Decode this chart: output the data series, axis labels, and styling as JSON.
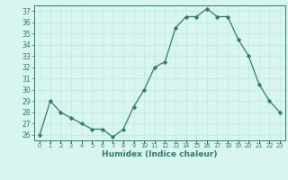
{
  "x": [
    0,
    1,
    2,
    3,
    4,
    5,
    6,
    7,
    8,
    9,
    10,
    11,
    12,
    13,
    14,
    15,
    16,
    17,
    18,
    19,
    20,
    21,
    22,
    23
  ],
  "y": [
    26.0,
    29.0,
    28.0,
    27.5,
    27.0,
    26.5,
    26.5,
    25.8,
    26.5,
    28.5,
    30.0,
    32.0,
    32.5,
    35.5,
    36.5,
    36.5,
    37.2,
    36.5,
    36.5,
    34.5,
    33.0,
    30.5,
    29.0,
    28.0
  ],
  "ylim": [
    25.5,
    37.5
  ],
  "yticks": [
    26,
    27,
    28,
    29,
    30,
    31,
    32,
    33,
    34,
    35,
    36,
    37
  ],
  "xlabel": "Humidex (Indice chaleur)",
  "line_color": "#2e7d6e",
  "marker_color": "#2e7d6e",
  "bg_color": "#d8f5f0",
  "grid_color": "#c4e8e0",
  "axis_color": "#2e7d6e",
  "tick_color": "#2e7d6e",
  "label_color": "#2e7d6e"
}
